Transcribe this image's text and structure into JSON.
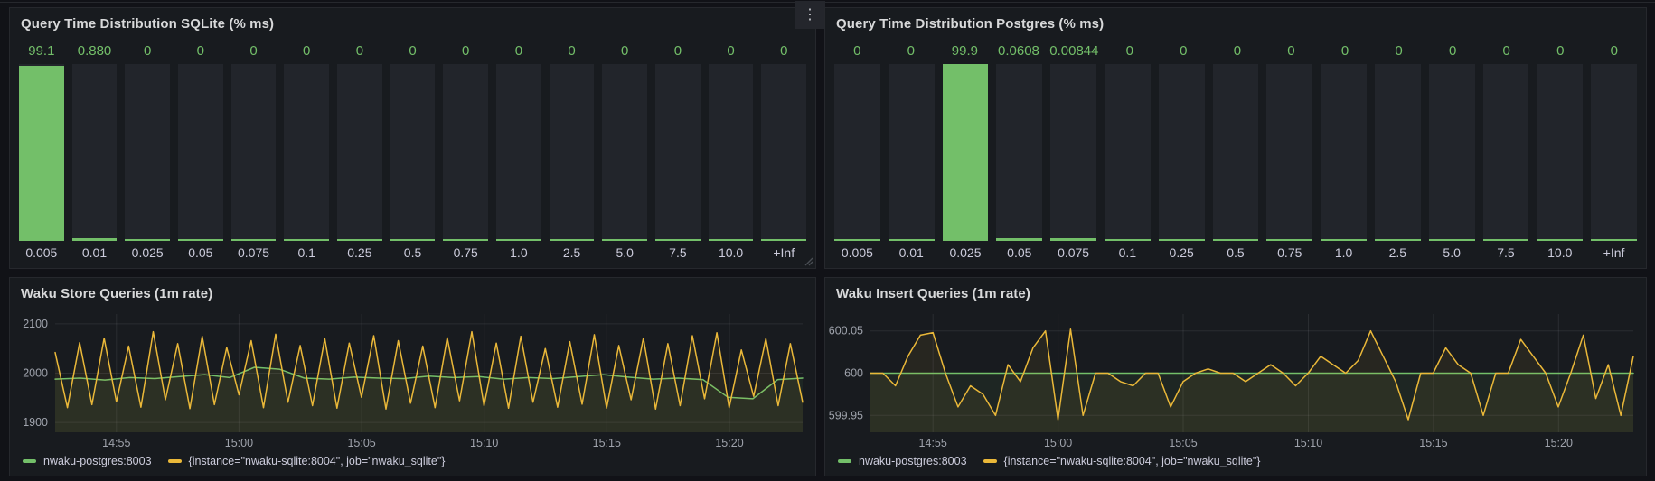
{
  "ui": {
    "menu_icon": "⋮"
  },
  "colors": {
    "page_bg": "#111217",
    "panel_bg": "#181B1F",
    "bar_track_bg": "#22252B",
    "green": "#73BF69",
    "yellow": "#EAB839"
  },
  "chart_data": [
    {
      "type": "bar",
      "title": "Query Time Distribution SQLite (% ms)",
      "categories": [
        "0.005",
        "0.01",
        "0.025",
        "0.05",
        "0.075",
        "0.1",
        "0.25",
        "0.5",
        "0.75",
        "1.0",
        "2.5",
        "5.0",
        "7.5",
        "10.0",
        "+Inf"
      ],
      "values": [
        99.1,
        0.88,
        0,
        0,
        0,
        0,
        0,
        0,
        0,
        0,
        0,
        0,
        0,
        0,
        0
      ],
      "value_labels": [
        "99.1",
        "0.880",
        "0",
        "0",
        "0",
        "0",
        "0",
        "0",
        "0",
        "0",
        "0",
        "0",
        "0",
        "0",
        "0"
      ],
      "ylim": [
        0,
        100
      ],
      "bar_color": "#73BF69",
      "bar_bg": "#22252B"
    },
    {
      "type": "bar",
      "title": "Query Time Distribution Postgres (% ms)",
      "categories": [
        "0.005",
        "0.01",
        "0.025",
        "0.05",
        "0.075",
        "0.1",
        "0.25",
        "0.5",
        "0.75",
        "1.0",
        "2.5",
        "5.0",
        "7.5",
        "10.0",
        "+Inf"
      ],
      "values": [
        0,
        0,
        99.9,
        0.0608,
        0.00844,
        0,
        0,
        0,
        0,
        0,
        0,
        0,
        0,
        0,
        0
      ],
      "value_labels": [
        "0",
        "0",
        "99.9",
        "0.0608",
        "0.00844",
        "0",
        "0",
        "0",
        "0",
        "0",
        "0",
        "0",
        "0",
        "0",
        "0"
      ],
      "ylim": [
        0,
        100
      ],
      "bar_color": "#73BF69",
      "bar_bg": "#22252B"
    },
    {
      "type": "line",
      "title": "Waku Store Queries (1m rate)",
      "ylim": [
        1880,
        2120
      ],
      "y_ticks": [
        {
          "v": 1900,
          "label": "1900"
        },
        {
          "v": 2000,
          "label": "2000"
        },
        {
          "v": 2100,
          "label": "2100"
        }
      ],
      "x_ticks": [
        {
          "label": "14:55",
          "f": 0.082
        },
        {
          "label": "15:00",
          "f": 0.246
        },
        {
          "label": "15:05",
          "f": 0.41
        },
        {
          "label": "15:10",
          "f": 0.574
        },
        {
          "label": "15:15",
          "f": 0.738
        },
        {
          "label": "15:20",
          "f": 0.902
        }
      ],
      "legend_position": "bottom",
      "series": [
        {
          "name": "nwaku-postgres:8003",
          "color": "#73BF69",
          "values": [
            1988,
            1990,
            1986,
            1991,
            1989,
            1993,
            1997,
            1991,
            2012,
            2008,
            1990,
            1988,
            1992,
            1990,
            1989,
            1994,
            1991,
            1993,
            1988,
            1991,
            1989,
            1993,
            1997,
            1992,
            1988,
            1990,
            1987,
            1951,
            1948,
            1987,
            1990
          ]
        },
        {
          "name": "{instance=\"nwaku-sqlite:8004\", job=\"nwaku_sqlite\"}",
          "color": "#EAB839",
          "values": [
            2042,
            1930,
            2062,
            1936,
            2071,
            1942,
            2055,
            1931,
            2084,
            1946,
            2060,
            1928,
            2075,
            1936,
            2052,
            1956,
            2066,
            1930,
            2079,
            1941,
            2056,
            1934,
            2070,
            1929,
            2061,
            1951,
            2076,
            1927,
            2066,
            1939,
            2055,
            1930,
            2072,
            1944,
            2084,
            1934,
            2061,
            1929,
            2075,
            1941,
            2050,
            1931,
            2064,
            1937,
            2078,
            1929,
            2056,
            1946,
            2071,
            1927,
            2060,
            1934,
            2076,
            1948,
            2082,
            1930,
            2047,
            1953,
            2070,
            1934,
            2060,
            1941
          ]
        }
      ]
    },
    {
      "type": "line",
      "title": "Waku Insert Queries (1m rate)",
      "ylim": [
        599.93,
        600.07
      ],
      "y_ticks": [
        {
          "v": 599.95,
          "label": "599.95"
        },
        {
          "v": 600,
          "label": "600"
        },
        {
          "v": 600.05,
          "label": "600.05"
        }
      ],
      "x_ticks": [
        {
          "label": "14:55",
          "f": 0.082
        },
        {
          "label": "15:00",
          "f": 0.246
        },
        {
          "label": "15:05",
          "f": 0.41
        },
        {
          "label": "15:10",
          "f": 0.574
        },
        {
          "label": "15:15",
          "f": 0.738
        },
        {
          "label": "15:20",
          "f": 0.902
        }
      ],
      "legend_position": "bottom",
      "series": [
        {
          "name": "nwaku-postgres:8003",
          "color": "#73BF69",
          "values": [
            600,
            600
          ]
        },
        {
          "name": "{instance=\"nwaku-sqlite:8004\", job=\"nwaku_sqlite\"}",
          "color": "#EAB839",
          "values": [
            600,
            600,
            599.985,
            600.02,
            600.045,
            600.048,
            600,
            599.96,
            599.985,
            599.975,
            599.95,
            600.01,
            599.99,
            600.03,
            600.05,
            599.945,
            600.052,
            599.95,
            600,
            600,
            599.99,
            599.985,
            600,
            600,
            599.96,
            599.99,
            600,
            600.005,
            600,
            600,
            599.99,
            600,
            600.01,
            600,
            599.985,
            600,
            600.02,
            600.01,
            600,
            600.015,
            600.05,
            600.02,
            599.99,
            599.945,
            600,
            600,
            600.03,
            600.01,
            600,
            599.95,
            600,
            600,
            600.04,
            600.02,
            600,
            599.96,
            600,
            600.045,
            599.97,
            600.01,
            599.95,
            600.02
          ]
        }
      ]
    }
  ]
}
